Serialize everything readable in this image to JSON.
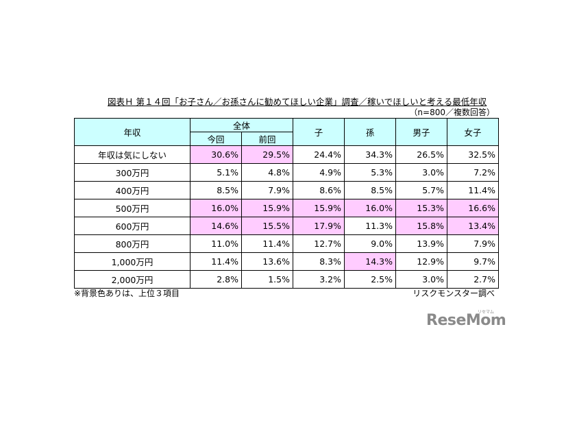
{
  "title": "図表Ｈ 第１４回「お子さん／お孫さんに勧めてほしい企業」調査／稼いでほしいと考える最低年収",
  "sample_note": "（n=800／複数回答）",
  "headers": {
    "income": "年収",
    "overall": "全体",
    "current": "今回",
    "previous": "前回",
    "child": "子",
    "grandchild": "孫",
    "male": "男子",
    "female": "女子"
  },
  "rows": [
    {
      "label": "年収は気にしない",
      "values": [
        "30.6%",
        "29.5%",
        "24.4%",
        "34.3%",
        "26.5%",
        "32.5%"
      ],
      "highlight": [
        true,
        true,
        false,
        false,
        false,
        false
      ]
    },
    {
      "label": "300万円",
      "values": [
        "5.1%",
        "4.8%",
        "4.9%",
        "5.3%",
        "3.0%",
        "7.2%"
      ],
      "highlight": [
        false,
        false,
        false,
        false,
        false,
        false
      ]
    },
    {
      "label": "400万円",
      "values": [
        "8.5%",
        "7.9%",
        "8.6%",
        "8.5%",
        "5.7%",
        "11.4%"
      ],
      "highlight": [
        false,
        false,
        false,
        false,
        false,
        false
      ]
    },
    {
      "label": "500万円",
      "values": [
        "16.0%",
        "15.9%",
        "15.9%",
        "16.0%",
        "15.3%",
        "16.6%"
      ],
      "highlight": [
        true,
        true,
        true,
        true,
        true,
        true
      ]
    },
    {
      "label": "600万円",
      "values": [
        "14.6%",
        "15.5%",
        "17.9%",
        "11.3%",
        "15.8%",
        "13.4%"
      ],
      "highlight": [
        true,
        true,
        true,
        false,
        true,
        true
      ]
    },
    {
      "label": "800万円",
      "values": [
        "11.0%",
        "11.4%",
        "12.7%",
        "9.0%",
        "13.9%",
        "7.9%"
      ],
      "highlight": [
        false,
        false,
        false,
        false,
        false,
        false
      ]
    },
    {
      "label": "1,000万円",
      "values": [
        "11.4%",
        "13.6%",
        "8.3%",
        "14.3%",
        "12.9%",
        "9.7%"
      ],
      "highlight": [
        false,
        false,
        false,
        true,
        false,
        false
      ]
    },
    {
      "label": "2,000万円",
      "values": [
        "2.8%",
        "1.5%",
        "3.2%",
        "2.5%",
        "3.0%",
        "2.7%"
      ],
      "highlight": [
        false,
        false,
        false,
        false,
        false,
        false
      ]
    }
  ],
  "footnote": "※背景色ありは、上位３項目",
  "source": "リスクモンスター調べ",
  "logo": {
    "text": "ReseMom",
    "sub": "リセマム"
  }
}
